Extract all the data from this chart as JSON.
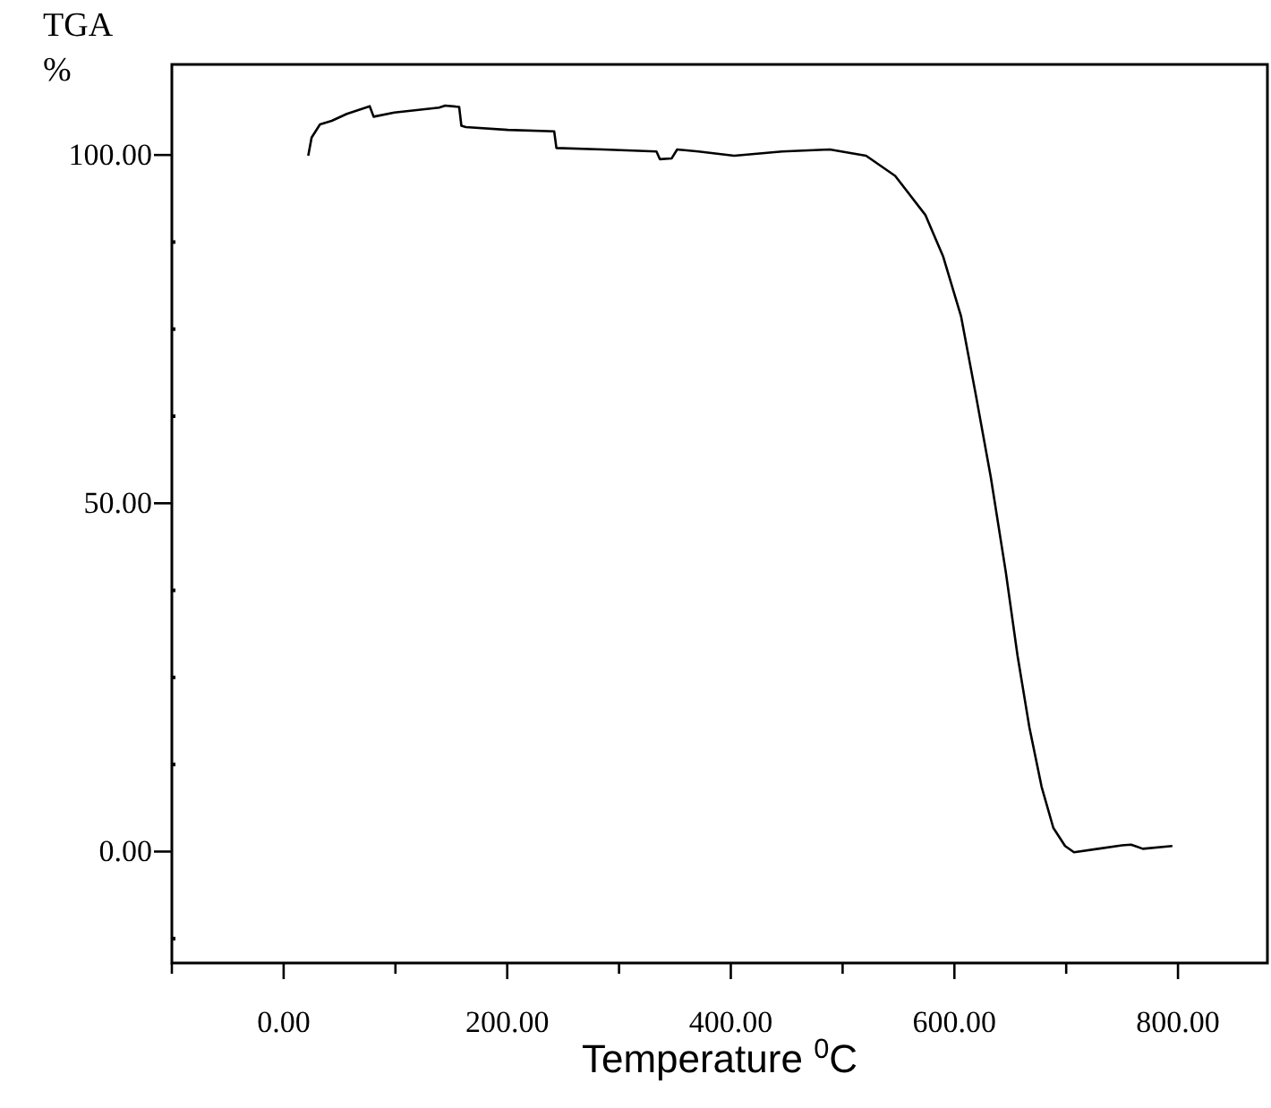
{
  "chart_data": {
    "type": "line",
    "ylabel": "TGA\n%",
    "xlabel": "Temperature $^{0}$C",
    "xlim": [
      -100,
      880
    ],
    "ylim": [
      -16,
      113
    ],
    "xticks": [
      {
        "value": -100,
        "label": null
      },
      {
        "value": 0,
        "label": "0.00"
      },
      {
        "value": 100,
        "label": null
      },
      {
        "value": 200,
        "label": "200.00"
      },
      {
        "value": 300,
        "label": null
      },
      {
        "value": 400,
        "label": "400.00"
      },
      {
        "value": 500,
        "label": null
      },
      {
        "value": 600,
        "label": "600.00"
      },
      {
        "value": 700,
        "label": null
      },
      {
        "value": 800,
        "label": "800.00"
      }
    ],
    "yticks": [
      {
        "value": -12.5,
        "label": null
      },
      {
        "value": 0,
        "label": "0.00"
      },
      {
        "value": 12.5,
        "label": null
      },
      {
        "value": 25,
        "label": null
      },
      {
        "value": 37.5,
        "label": null
      },
      {
        "value": 50,
        "label": "50.00"
      },
      {
        "value": 62.5,
        "label": null
      },
      {
        "value": 75,
        "label": null
      },
      {
        "value": 87.5,
        "label": null
      },
      {
        "value": 100,
        "label": "100.00"
      }
    ],
    "grid": false,
    "marker": "none",
    "line_style": "solid",
    "series": [
      {
        "color": "#000000",
        "x": [
          22,
          25,
          32.5,
          43,
          56.5,
          77,
          80.5,
          99,
          139,
          144.5,
          157,
          159,
          163,
          200.5,
          242,
          244,
          285.5,
          333.5,
          336.5,
          347,
          352,
          371,
          403,
          446,
          488.5,
          521,
          547,
          574,
          590,
          606,
          619,
          632.5,
          646,
          656.5,
          667,
          678,
          688.5,
          699,
          707,
          728.5,
          750,
          758,
          768.5,
          795
        ],
        "values": [
          99.9,
          102.5,
          104.4,
          104.9,
          105.9,
          107,
          105.5,
          106.1,
          106.8,
          107.1,
          106.9,
          104.2,
          104,
          103.6,
          103.4,
          101,
          100.8,
          100.5,
          99.4,
          99.5,
          100.8,
          100.5,
          99.9,
          100.5,
          100.8,
          99.9,
          97,
          91.4,
          85.4,
          76.8,
          65.7,
          53.8,
          40.1,
          28.1,
          17.9,
          9.3,
          3.4,
          0.8,
          -0.1,
          0.4,
          0.9,
          1,
          0.4,
          0.8
        ]
      }
    ]
  }
}
